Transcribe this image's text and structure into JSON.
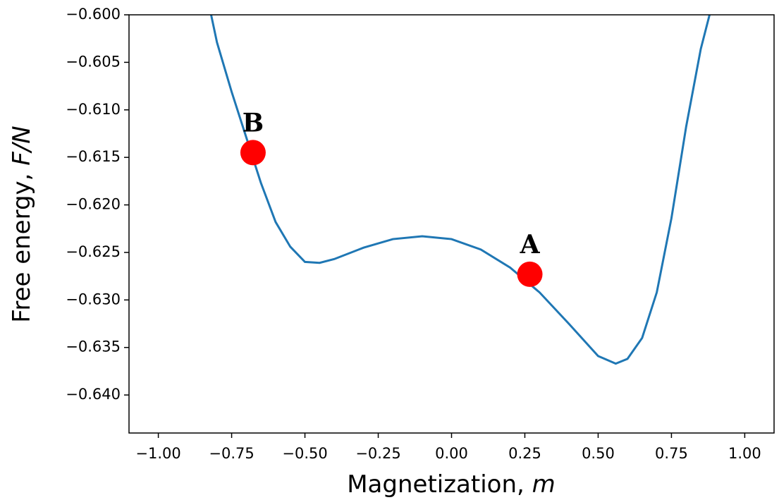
{
  "chart_data": {
    "type": "line",
    "xlabel": "Magnetization,",
    "xlabel_var": "m",
    "ylabel": "Free energy,",
    "ylabel_var": "F/N",
    "xlim": [
      -1.1,
      1.1
    ],
    "ylim": [
      -0.644,
      -0.6
    ],
    "xticks": [
      {
        "value": -1,
        "label": "−1.00"
      },
      {
        "value": -0.75,
        "label": "−0.75"
      },
      {
        "value": -0.5,
        "label": "−0.50"
      },
      {
        "value": -0.25,
        "label": "−0.25"
      },
      {
        "value": 0,
        "label": "0.00"
      },
      {
        "value": 0.25,
        "label": "0.25"
      },
      {
        "value": 0.5,
        "label": "0.50"
      },
      {
        "value": 0.75,
        "label": "0.75"
      },
      {
        "value": 1,
        "label": "1.00"
      }
    ],
    "yticks": [
      {
        "value": -0.6,
        "label": "−0.600"
      },
      {
        "value": -0.605,
        "label": "−0.605"
      },
      {
        "value": -0.61,
        "label": "−0.610"
      },
      {
        "value": -0.615,
        "label": "−0.615"
      },
      {
        "value": -0.62,
        "label": "−0.620"
      },
      {
        "value": -0.625,
        "label": "−0.625"
      },
      {
        "value": -0.63,
        "label": "−0.630"
      },
      {
        "value": -0.635,
        "label": "−0.635"
      },
      {
        "value": -0.64,
        "label": "−0.640"
      }
    ],
    "x": [
      -0.82,
      -0.8,
      -0.75,
      -0.7,
      -0.65,
      -0.6,
      -0.55,
      -0.5,
      -0.45,
      -0.4,
      -0.3,
      -0.2,
      -0.1,
      0,
      0.1,
      0.2,
      0.3,
      0.4,
      0.5,
      0.56,
      0.6,
      0.65,
      0.7,
      0.75,
      0.8,
      0.85,
      0.88
    ],
    "series": [
      {
        "color": "#1f77b4",
        "values": [
          -0.6,
          -0.6029,
          -0.6081,
          -0.6129,
          -0.6177,
          -0.6218,
          -0.6244,
          -0.626,
          -0.6261,
          -0.6257,
          -0.6245,
          -0.6236,
          -0.6233,
          -0.6236,
          -0.6247,
          -0.6266,
          -0.6292,
          -0.6325,
          -0.6359,
          -0.6367,
          -0.6362,
          -0.634,
          -0.6292,
          -0.6214,
          -0.6118,
          -0.6036,
          -0.6
        ]
      }
    ],
    "points": [
      {
        "label": "B",
        "x": -0.677,
        "y": -0.6145,
        "color": "#ff0000"
      },
      {
        "label": "A",
        "x": 0.267,
        "y": -0.6273,
        "color": "#ff0000"
      }
    ]
  }
}
